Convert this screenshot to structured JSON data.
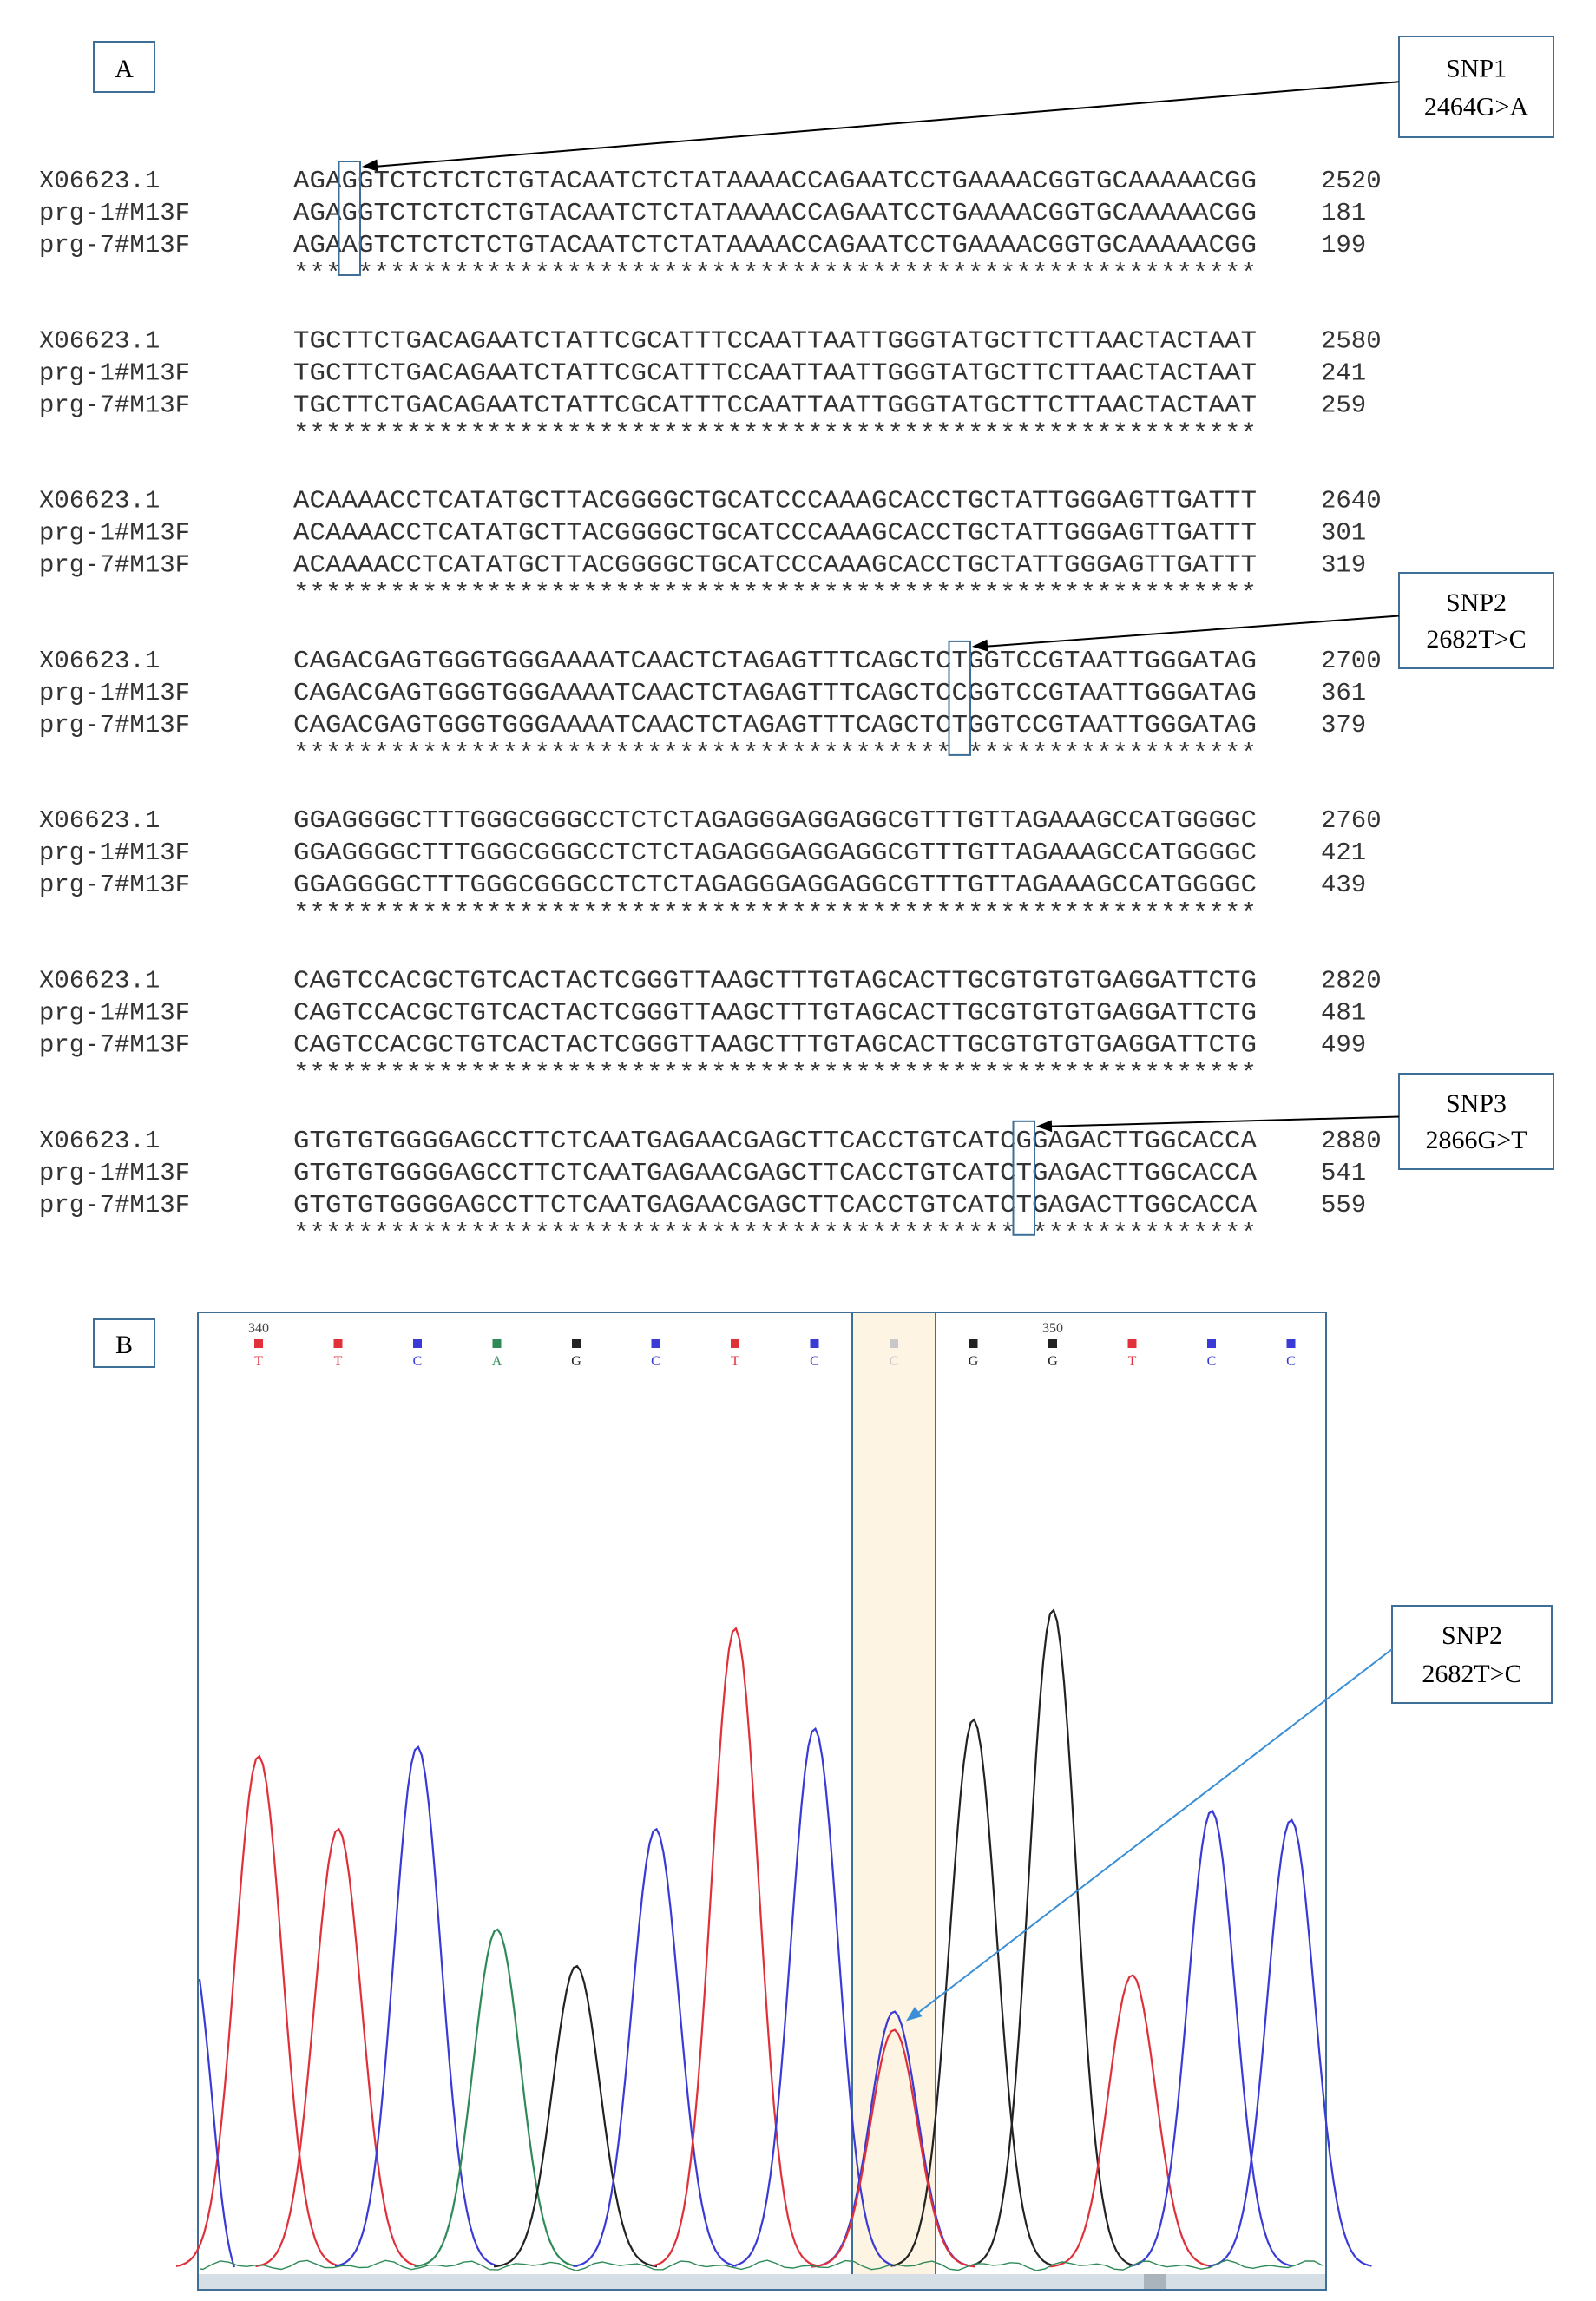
{
  "panel_a": {
    "label": "A",
    "blocks": [
      {
        "rows": [
          {
            "name": "X06623.1",
            "seq": "AGAGGTCTCTCTCTGTACAATCTCTATAAAACCAGAATCCTGAAAACGGTGCAAAAACGG",
            "pos": "2520"
          },
          {
            "name": "prg-1#M13F",
            "seq": "AGAGGTCTCTCTCTGTACAATCTCTATAAAACCAGAATCCTGAAAACGGTGCAAAAACGG",
            "pos": "181"
          },
          {
            "name": "prg-7#M13F",
            "seq": "AGAAGTCTCTCTCTGTACAATCTCTATAAAACCAGAATCCTGAAAACGGTGCAAAAACGG",
            "pos": "199"
          }
        ],
        "cons": "*** ********************************************************"
      },
      {
        "rows": [
          {
            "name": "X06623.1",
            "seq": "TGCTTCTGACAGAATCTATTCGCATTTCCAATTAATTGGGTATGCTTCTTAACTACTAAT",
            "pos": "2580"
          },
          {
            "name": "prg-1#M13F",
            "seq": "TGCTTCTGACAGAATCTATTCGCATTTCCAATTAATTGGGTATGCTTCTTAACTACTAAT",
            "pos": "241"
          },
          {
            "name": "prg-7#M13F",
            "seq": "TGCTTCTGACAGAATCTATTCGCATTTCCAATTAATTGGGTATGCTTCTTAACTACTAAT",
            "pos": "259"
          }
        ],
        "cons": "************************************************************"
      },
      {
        "rows": [
          {
            "name": "X06623.1",
            "seq": "ACAAAACCTCATATGCTTACGGGGCTGCATCCCAAAGCACCTGCTATTGGGAGTTGATTT",
            "pos": "2640"
          },
          {
            "name": "prg-1#M13F",
            "seq": "ACAAAACCTCATATGCTTACGGGGCTGCATCCCAAAGCACCTGCTATTGGGAGTTGATTT",
            "pos": "301"
          },
          {
            "name": "prg-7#M13F",
            "seq": "ACAAAACCTCATATGCTTACGGGGCTGCATCCCAAAGCACCTGCTATTGGGAGTTGATTT",
            "pos": "319"
          }
        ],
        "cons": "************************************************************"
      },
      {
        "rows": [
          {
            "name": "X06623.1",
            "seq": "CAGACGAGTGGGTGGGAAAATCAACTCTAGAGTTTCAGCTCTGGTCCGTAATTGGGATAG",
            "pos": "2700"
          },
          {
            "name": "prg-1#M13F",
            "seq": "CAGACGAGTGGGTGGGAAAATCAACTCTAGAGTTTCAGCTCCGGTCCGTAATTGGGATAG",
            "pos": "361"
          },
          {
            "name": "prg-7#M13F",
            "seq": "CAGACGAGTGGGTGGGAAAATCAACTCTAGAGTTTCAGCTCTGGTCCGTAATTGGGATAG",
            "pos": "379"
          }
        ],
        "cons": "***************************************** ******************"
      },
      {
        "rows": [
          {
            "name": "X06623.1",
            "seq": "GGAGGGGCTTTGGGCGGGCCTCTCTAGAGGGAGGAGGCGTTTGTTAGAAAGCCATGGGGC",
            "pos": "2760"
          },
          {
            "name": "prg-1#M13F",
            "seq": "GGAGGGGCTTTGGGCGGGCCTCTCTAGAGGGAGGAGGCGTTTGTTAGAAAGCCATGGGGC",
            "pos": "421"
          },
          {
            "name": "prg-7#M13F",
            "seq": "GGAGGGGCTTTGGGCGGGCCTCTCTAGAGGGAGGAGGCGTTTGTTAGAAAGCCATGGGGC",
            "pos": "439"
          }
        ],
        "cons": "************************************************************"
      },
      {
        "rows": [
          {
            "name": "X06623.1",
            "seq": "CAGTCCACGCTGTCACTACTCGGGTTAAGCTTTGTAGCACTTGCGTGTGTGAGGATTCTG",
            "pos": "2820"
          },
          {
            "name": "prg-1#M13F",
            "seq": "CAGTCCACGCTGTCACTACTCGGGTTAAGCTTTGTAGCACTTGCGTGTGTGAGGATTCTG",
            "pos": "481"
          },
          {
            "name": "prg-7#M13F",
            "seq": "CAGTCCACGCTGTCACTACTCGGGTTAAGCTTTGTAGCACTTGCGTGTGTGAGGATTCTG",
            "pos": "499"
          }
        ],
        "cons": "************************************************************"
      },
      {
        "rows": [
          {
            "name": "X06623.1",
            "seq": "GTGTGTGGGGAGCCTTCTCAATGAGAACGAGCTTCACCTGTCATCGGAGACTTGGCACCA",
            "pos": "2880"
          },
          {
            "name": "prg-1#M13F",
            "seq": "GTGTGTGGGGAGCCTTCTCAATGAGAACGAGCTTCACCTGTCATCTGAGACTTGGCACCA",
            "pos": "541"
          },
          {
            "name": "prg-7#M13F",
            "seq": "GTGTGTGGGGAGCCTTCTCAATGAGAACGAGCTTCACCTGTCATCTGAGACTTGGCACCA",
            "pos": "559"
          }
        ],
        "cons": "********************************************* **************"
      }
    ],
    "snps": [
      {
        "name": "SNP1",
        "change": "2464G>A",
        "block": 0,
        "col": 3
      },
      {
        "name": "SNP2",
        "change": "2682T>C",
        "block": 3,
        "col": 41
      },
      {
        "name": "SNP3",
        "change": "2866G>T",
        "block": 6,
        "col": 45
      }
    ]
  },
  "panel_b": {
    "label": "B",
    "pos_labels": [
      {
        "text": "340",
        "idx": 0
      },
      {
        "text": "350",
        "idx": 10
      }
    ],
    "bases": [
      "T",
      "T",
      "C",
      "A",
      "G",
      "C",
      "T",
      "C",
      "C",
      "G",
      "G",
      "T",
      "C",
      "C"
    ],
    "trace_colors": {
      "A": "#2e8b57",
      "C": "#3a3ad6",
      "G": "#222222",
      "T": "#e0303a"
    },
    "peaks": [
      {
        "base": "T",
        "height": 0.56
      },
      {
        "base": "T",
        "height": 0.48
      },
      {
        "base": "C",
        "height": 0.57
      },
      {
        "base": "A",
        "height": 0.37
      },
      {
        "base": "G",
        "height": 0.33
      },
      {
        "base": "C",
        "height": 0.48
      },
      {
        "base": "T",
        "height": 0.7
      },
      {
        "base": "C",
        "height": 0.59
      },
      {
        "base": "C",
        "height": 0.28
      },
      {
        "base": "G",
        "height": 0.6
      },
      {
        "base": "G",
        "height": 0.72
      },
      {
        "base": "T",
        "height": 0.32
      },
      {
        "base": "C",
        "height": 0.5
      },
      {
        "base": "C",
        "height": 0.49
      }
    ],
    "highlight_index": 8,
    "overlap_peak": {
      "base": "T",
      "index": 8,
      "height": 0.26
    },
    "snp": {
      "name": "SNP2",
      "change": "2682T>C"
    }
  }
}
